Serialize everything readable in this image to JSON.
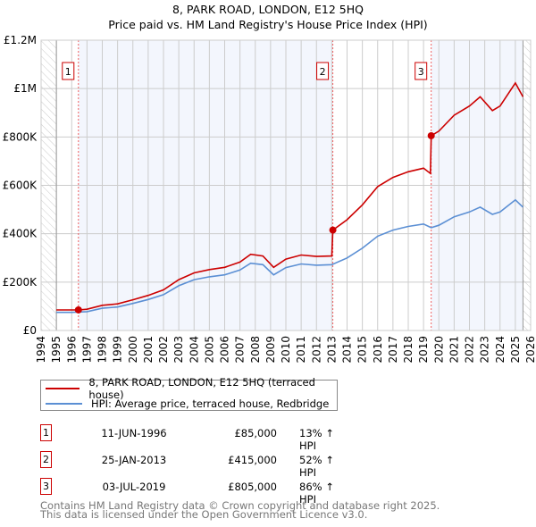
{
  "title": "8, PARK ROAD, LONDON, E12 5HQ",
  "subtitle": "Price paid vs. HM Land Registry's House Price Index (HPI)",
  "legend": [
    {
      "label": "8, PARK ROAD, LONDON, E12 5HQ (terraced house)",
      "color": "#cc0000"
    },
    {
      "label": "HPI: Average price, terraced house, Redbridge",
      "color": "#5b8fd4"
    }
  ],
  "sales": [
    {
      "num": "1",
      "date": "11-JUN-1996",
      "price": "£85,000",
      "pct": "13% ↑ HPI"
    },
    {
      "num": "2",
      "date": "25-JAN-2013",
      "price": "£415,000",
      "pct": "52% ↑ HPI"
    },
    {
      "num": "3",
      "date": "03-JUL-2019",
      "price": "£805,000",
      "pct": "86% ↑ HPI"
    }
  ],
  "footer": [
    "Contains HM Land Registry data © Crown copyright and database right 2025.",
    "This data is licensed under the Open Government Licence v3.0."
  ],
  "chart_data": {
    "type": "line",
    "xlim": [
      1994,
      2026
    ],
    "ylim": [
      0,
      1200000
    ],
    "data_range": [
      1995,
      2025.5
    ],
    "yticks": [
      0,
      200000,
      400000,
      600000,
      800000,
      1000000,
      1200000
    ],
    "ytick_labels": [
      "£0",
      "£200K",
      "£400K",
      "£600K",
      "£800K",
      "£1M",
      "£1.2M"
    ],
    "xticks": [
      1994,
      1995,
      1996,
      1997,
      1998,
      1999,
      2000,
      2001,
      2002,
      2003,
      2004,
      2005,
      2006,
      2007,
      2008,
      2009,
      2010,
      2011,
      2012,
      2013,
      2014,
      2015,
      2016,
      2017,
      2018,
      2019,
      2020,
      2021,
      2022,
      2023,
      2024,
      2025,
      2026
    ],
    "grid": true,
    "sale_points": [
      {
        "label": "1",
        "x": 1996.44,
        "y": 85000
      },
      {
        "label": "2",
        "x": 2013.07,
        "y": 415000
      },
      {
        "label": "3",
        "x": 2019.5,
        "y": 805000
      }
    ],
    "series": [
      {
        "name": "8, PARK ROAD, LONDON, E12 5HQ (terraced house)",
        "color": "#cc0000",
        "x": [
          1995,
          1996,
          1996.44,
          1997,
          1998,
          1999,
          2000,
          2001,
          2002,
          2003,
          2004,
          2005,
          2006,
          2007,
          2007.7,
          2008.5,
          2009.2,
          2010,
          2011,
          2012,
          2013,
          2013.07,
          2014,
          2015,
          2016,
          2017,
          2018,
          2019,
          2019.45,
          2019.5,
          2020,
          2021,
          2022,
          2022.7,
          2023.5,
          2024,
          2025,
          2025.5
        ],
        "y": [
          85000,
          85000,
          85000,
          88000,
          104000,
          110000,
          127000,
          145000,
          168000,
          210000,
          238000,
          252000,
          261000,
          283000,
          315000,
          308000,
          261000,
          295000,
          312000,
          306000,
          308000,
          415000,
          458000,
          519000,
          595000,
          633000,
          656000,
          671000,
          649000,
          805000,
          824000,
          890000,
          928000,
          966000,
          909000,
          928000,
          1023000,
          966000
        ]
      },
      {
        "name": "HPI: Average price, terraced house, Redbridge",
        "color": "#5b8fd4",
        "x": [
          1995,
          1996,
          1997,
          1998,
          1999,
          2000,
          2001,
          2002,
          2003,
          2004,
          2005,
          2006,
          2007,
          2007.7,
          2008.5,
          2009.2,
          2010,
          2011,
          2012,
          2013,
          2014,
          2015,
          2016,
          2017,
          2018,
          2019,
          2019.5,
          2020,
          2021,
          2022,
          2022.7,
          2023.5,
          2024,
          2025,
          2025.5
        ],
        "y": [
          75000,
          75000,
          78000,
          92000,
          97000,
          112000,
          128000,
          148000,
          185000,
          210000,
          222000,
          230000,
          250000,
          278000,
          272000,
          230000,
          260000,
          275000,
          270000,
          272000,
          300000,
          340000,
          390000,
          415000,
          430000,
          440000,
          425000,
          435000,
          470000,
          490000,
          510000,
          480000,
          490000,
          540000,
          510000
        ]
      }
    ]
  }
}
